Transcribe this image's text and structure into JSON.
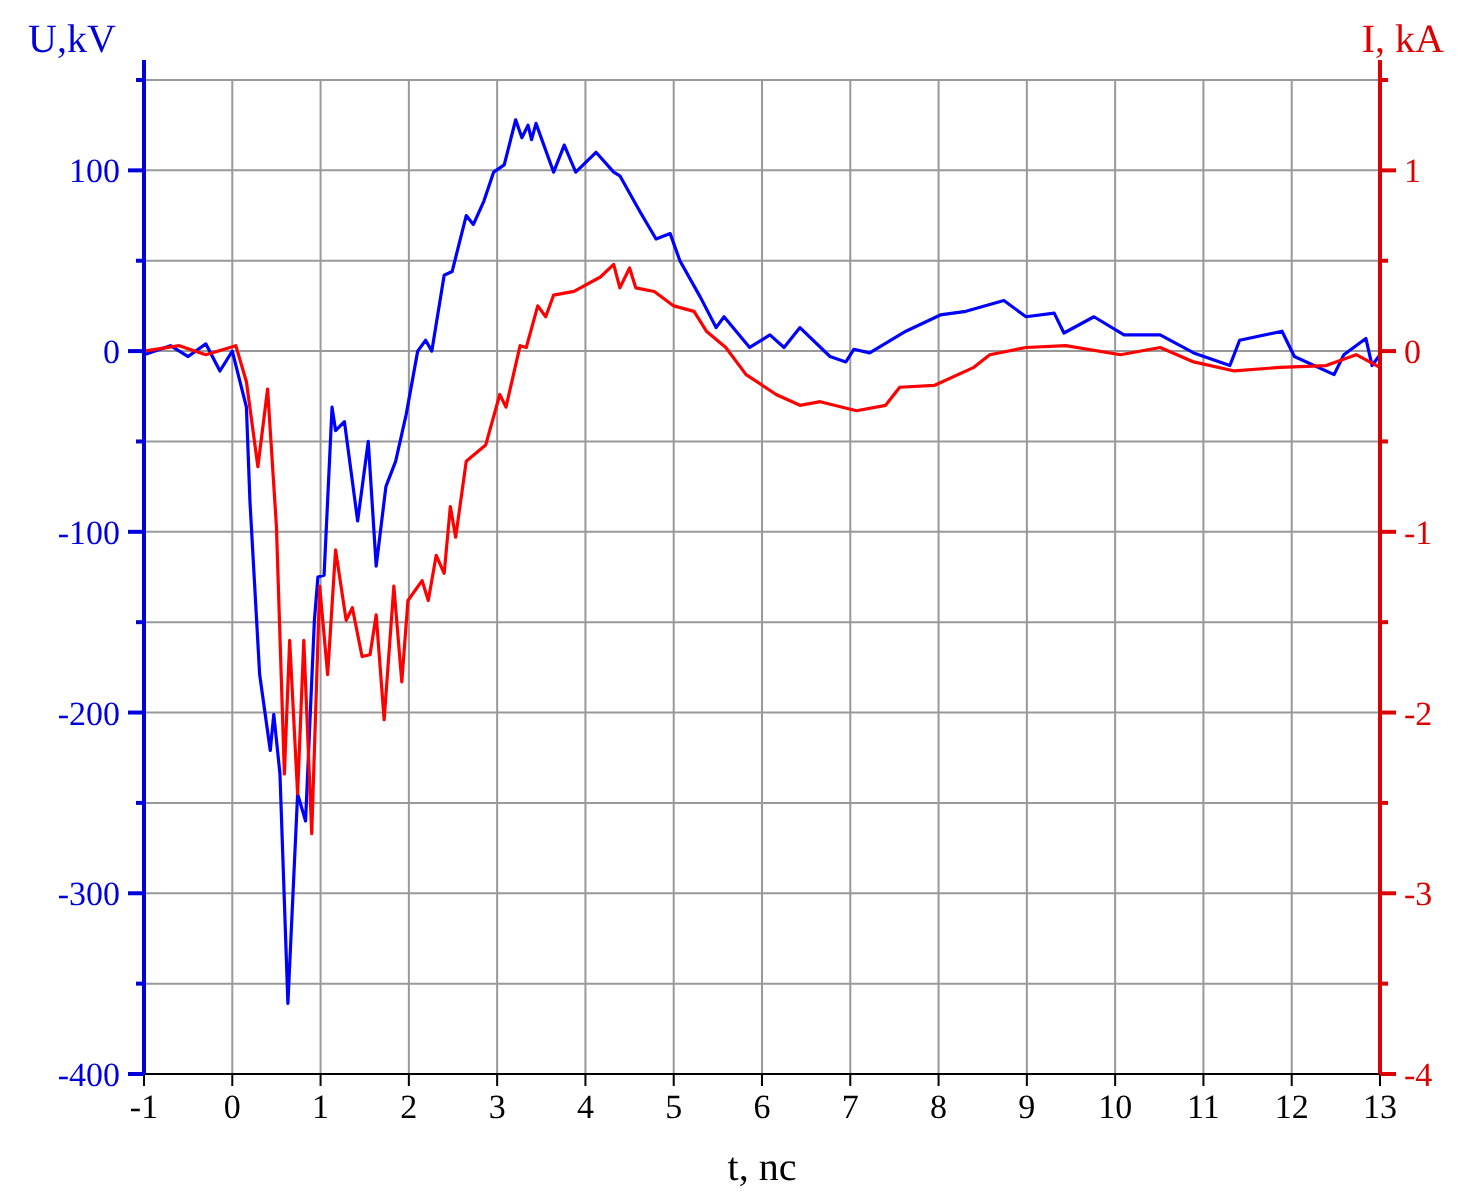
{
  "chart_data": {
    "type": "line",
    "xlabel": "t, nc",
    "ylabel": "U,kV",
    "y2label": "I, kA",
    "grid": true,
    "line_style": "solid",
    "marker": "none",
    "xlim": [
      -1,
      13
    ],
    "xticks": [
      -1,
      0,
      1,
      2,
      3,
      4,
      5,
      6,
      7,
      8,
      9,
      10,
      11,
      12,
      13
    ],
    "ylim": [
      -400,
      150
    ],
    "yticks": [
      -400,
      {
        "value": -350,
        "label": null
      },
      -300,
      {
        "value": -250,
        "label": null
      },
      -200,
      {
        "value": -150,
        "label": null
      },
      -100,
      {
        "value": -50,
        "label": null
      },
      0,
      {
        "value": 50,
        "label": null
      },
      100,
      {
        "value": 150,
        "label": null
      }
    ],
    "y2lim": [
      -4,
      1.5
    ],
    "y2ticks": [
      -4,
      {
        "value": -3.5,
        "label": null
      },
      -3,
      {
        "value": -2.5,
        "label": null
      },
      -2,
      {
        "value": -1.5,
        "label": null
      },
      -1,
      {
        "value": -0.5,
        "label": null
      },
      0,
      {
        "value": 0.5,
        "label": null
      },
      1,
      {
        "value": 1.5,
        "label": null
      }
    ],
    "series": [
      {
        "color": "#0000ff",
        "x": [
          -1,
          -0.7,
          -0.5,
          -0.3,
          -0.14,
          0,
          0.16,
          0.2,
          0.31,
          0.43,
          0.47,
          0.54,
          0.63,
          0.74,
          0.83,
          0.93,
          0.97,
          1.04,
          1.13,
          1.17,
          1.27,
          1.42,
          1.54,
          1.63,
          1.74,
          1.85,
          1.97,
          2.1,
          2.19,
          2.26,
          2.4,
          2.49,
          2.65,
          2.73,
          2.85,
          2.96,
          3.08,
          3.21,
          3.28,
          3.35,
          3.39,
          3.44,
          3.64,
          3.76,
          3.89,
          4.12,
          4.32,
          4.39,
          4.62,
          4.8,
          4.96,
          5.07,
          5.3,
          5.48,
          5.57,
          5.86,
          6.09,
          6.25,
          6.43,
          6.77,
          6.95,
          7.04,
          7.22,
          7.63,
          8.02,
          8.31,
          8.74,
          8.99,
          9.31,
          9.42,
          9.76,
          10.1,
          10.51,
          10.89,
          11.3,
          11.41,
          11.89,
          12.03,
          12.48,
          12.59,
          12.84,
          12.91,
          13
        ],
        "values": [
          -2,
          3,
          -3,
          4,
          -11,
          0,
          -31,
          -83,
          -179,
          -221,
          -201,
          -234,
          -361,
          -245,
          -260,
          -149,
          -125,
          -124,
          -31,
          -44,
          -39,
          -94,
          -50,
          -119,
          -75,
          -61,
          -35,
          0,
          6,
          0,
          42,
          44,
          75,
          70,
          83,
          99,
          103,
          128,
          118,
          125,
          117,
          126,
          99,
          114,
          99,
          110,
          99,
          97,
          77,
          62,
          65,
          50,
          30,
          13,
          19,
          2,
          9,
          2,
          13,
          -3,
          -6,
          1,
          -1,
          11,
          20,
          22,
          28,
          19,
          21,
          10,
          19,
          9,
          9,
          -1,
          -8,
          6,
          11,
          -3,
          -13,
          -2,
          7,
          -8,
          -2
        ]
      },
      {
        "color": "#ff0000",
        "axis": "y2",
        "x": [
          -1,
          -0.6,
          -0.3,
          0.04,
          0.16,
          0.29,
          0.4,
          0.5,
          0.59,
          0.65,
          0.74,
          0.81,
          0.9,
          0.99,
          1.08,
          1.17,
          1.29,
          1.36,
          1.47,
          1.56,
          1.63,
          1.72,
          1.83,
          1.92,
          1.99,
          2.15,
          2.22,
          2.31,
          2.4,
          2.47,
          2.53,
          2.65,
          2.87,
          3.03,
          3.1,
          3.26,
          3.33,
          3.46,
          3.55,
          3.64,
          3.87,
          4.17,
          4.32,
          4.39,
          4.5,
          4.57,
          4.78,
          5.0,
          5.23,
          5.37,
          5.59,
          5.82,
          6.16,
          6.43,
          6.66,
          7.07,
          7.4,
          7.56,
          7.95,
          8.4,
          8.58,
          8.99,
          9.44,
          10.06,
          10.51,
          10.89,
          11.35,
          11.87,
          12.39,
          12.73,
          13
        ],
        "values": [
          0,
          0.03,
          -0.02,
          0.03,
          -0.17,
          -0.64,
          -0.21,
          -0.97,
          -2.34,
          -1.6,
          -2.45,
          -1.6,
          -2.67,
          -1.3,
          -1.79,
          -1.1,
          -1.49,
          -1.42,
          -1.69,
          -1.68,
          -1.46,
          -2.04,
          -1.3,
          -1.83,
          -1.38,
          -1.27,
          -1.38,
          -1.13,
          -1.23,
          -0.86,
          -1.03,
          -0.61,
          -0.52,
          -0.24,
          -0.31,
          0.03,
          0.02,
          0.25,
          0.19,
          0.31,
          0.33,
          0.41,
          0.48,
          0.35,
          0.46,
          0.35,
          0.33,
          0.25,
          0.22,
          0.11,
          0.02,
          -0.13,
          -0.24,
          -0.3,
          -0.28,
          -0.33,
          -0.3,
          -0.2,
          -0.19,
          -0.09,
          -0.02,
          0.02,
          0.03,
          -0.02,
          0.02,
          -0.06,
          -0.11,
          -0.09,
          -0.08,
          -0.02,
          -0.09
        ]
      }
    ]
  }
}
